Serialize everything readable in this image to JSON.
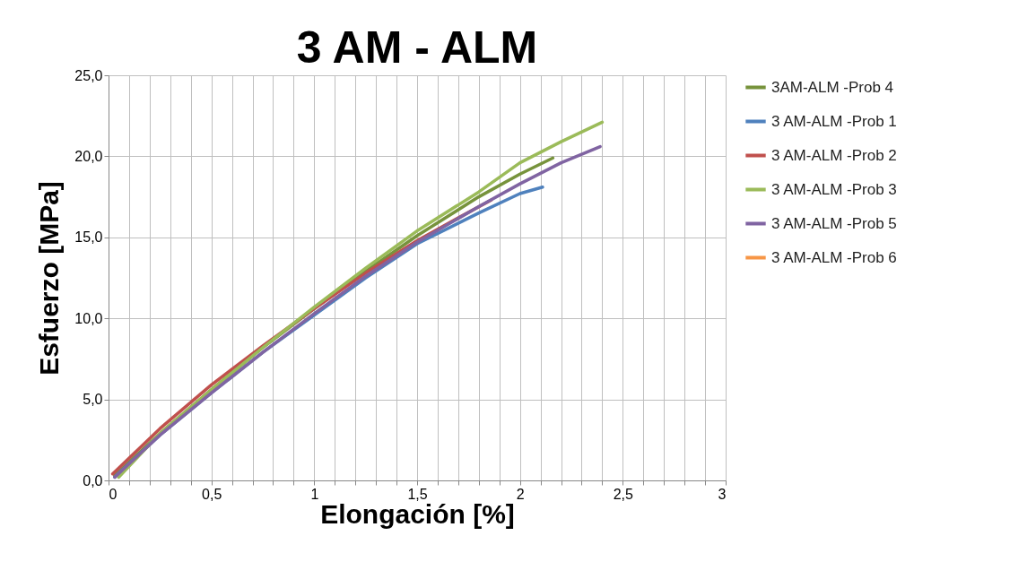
{
  "chart_data": {
    "type": "line",
    "title": "3 AM - ALM",
    "xlabel": "Elongación [%]",
    "ylabel": "Esfuerzo [MPa]",
    "xlim": [
      0,
      3
    ],
    "ylim": [
      0,
      25
    ],
    "xticks": [
      {
        "value": 0,
        "label": "0"
      },
      {
        "value": 0.1,
        "label": null
      },
      {
        "value": 0.2,
        "label": null
      },
      {
        "value": 0.3,
        "label": null
      },
      {
        "value": 0.4,
        "label": null
      },
      {
        "value": 0.5,
        "label": "0,5"
      },
      {
        "value": 0.6,
        "label": null
      },
      {
        "value": 0.7,
        "label": null
      },
      {
        "value": 0.8,
        "label": null
      },
      {
        "value": 0.9,
        "label": null
      },
      {
        "value": 1,
        "label": "1"
      },
      {
        "value": 1.1,
        "label": null
      },
      {
        "value": 1.2,
        "label": null
      },
      {
        "value": 1.3,
        "label": null
      },
      {
        "value": 1.4,
        "label": null
      },
      {
        "value": 1.5,
        "label": "1,5"
      },
      {
        "value": 1.6,
        "label": null
      },
      {
        "value": 1.7,
        "label": null
      },
      {
        "value": 1.8,
        "label": null
      },
      {
        "value": 1.9,
        "label": null
      },
      {
        "value": 2,
        "label": "2"
      },
      {
        "value": 2.1,
        "label": null
      },
      {
        "value": 2.2,
        "label": null
      },
      {
        "value": 2.3,
        "label": null
      },
      {
        "value": 2.4,
        "label": null
      },
      {
        "value": 2.5,
        "label": "2,5"
      },
      {
        "value": 2.6,
        "label": null
      },
      {
        "value": 2.7,
        "label": null
      },
      {
        "value": 2.8,
        "label": null
      },
      {
        "value": 2.9,
        "label": null
      },
      {
        "value": 3,
        "label": "3"
      }
    ],
    "yticks": [
      {
        "value": 0,
        "label": "0,0"
      },
      {
        "value": 5,
        "label": "5,0"
      },
      {
        "value": 10,
        "label": "10,0"
      },
      {
        "value": 15,
        "label": "15,0"
      },
      {
        "value": 20,
        "label": "20,0"
      },
      {
        "value": 25,
        "label": "25,0"
      }
    ],
    "grid": true,
    "legend": "right",
    "marker": "none",
    "line_style": "solid",
    "series": [
      {
        "name": "3AM-ALM -Prob 4",
        "color": "#77933c",
        "x": [
          0.03,
          0.25,
          0.5,
          0.75,
          1,
          1.25,
          1.5,
          1.8,
          2,
          2.16
        ],
        "values": [
          0.3,
          2.9,
          5.6,
          8.2,
          10.6,
          12.9,
          15.1,
          17.5,
          18.9,
          19.9
        ]
      },
      {
        "name": "3 AM-ALM -Prob 1",
        "color": "#4f81bd",
        "x": [
          0.03,
          0.25,
          0.5,
          0.75,
          1,
          1.25,
          1.5,
          1.8,
          2,
          2.11
        ],
        "values": [
          0.2,
          2.8,
          5.4,
          7.9,
          10.2,
          12.5,
          14.6,
          16.5,
          17.7,
          18.1
        ]
      },
      {
        "name": "3 AM-ALM -Prob 2",
        "color": "#c0504d",
        "x": [
          0.02,
          0.25,
          0.5,
          0.75,
          1,
          1.25,
          1.5,
          1.7,
          1.86
        ],
        "values": [
          0.4,
          3.2,
          5.9,
          8.3,
          10.6,
          12.8,
          14.8,
          16.2,
          17.3
        ]
      },
      {
        "name": "3 AM-ALM -Prob 3",
        "color": "#9bbb59",
        "x": [
          0.05,
          0.25,
          0.5,
          0.75,
          1,
          1.25,
          1.5,
          1.8,
          2,
          2.2,
          2.4
        ],
        "values": [
          0.2,
          2.9,
          5.6,
          8.2,
          10.7,
          13.1,
          15.4,
          17.8,
          19.6,
          20.9,
          22.1
        ]
      },
      {
        "name": "3 AM-ALM -Prob 5",
        "color": "#8064a2",
        "x": [
          0.03,
          0.25,
          0.5,
          0.75,
          1,
          1.25,
          1.5,
          1.8,
          2,
          2.2,
          2.39
        ],
        "values": [
          0.2,
          2.8,
          5.4,
          7.9,
          10.3,
          12.6,
          14.7,
          16.9,
          18.3,
          19.6,
          20.6
        ]
      },
      {
        "name": "3 AM-ALM -Prob 6",
        "color": "#f79646"
      }
    ]
  }
}
